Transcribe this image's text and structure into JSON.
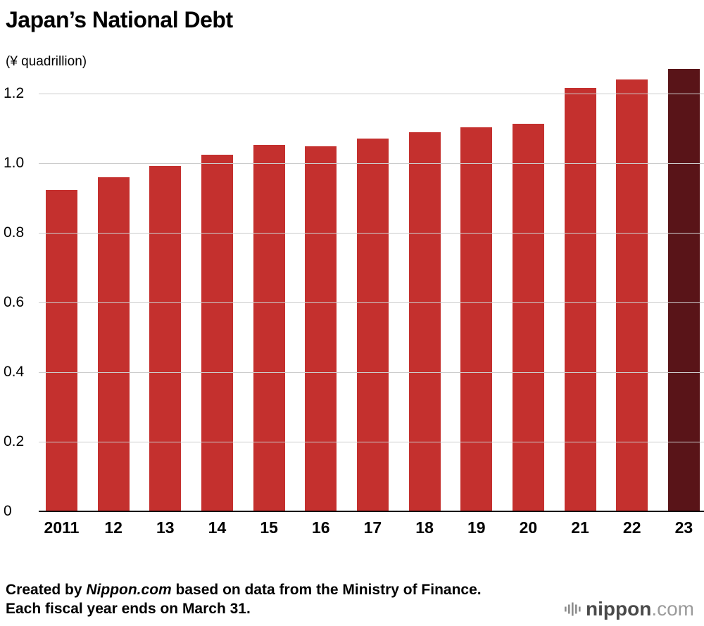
{
  "header": {
    "title": "Japan’s National Debt",
    "unit": "(¥ quadrillion)"
  },
  "chart_data": {
    "type": "bar",
    "title": "Japan’s National Debt",
    "ylabel": "(¥ quadrillion)",
    "categories": [
      "2011",
      "12",
      "13",
      "14",
      "15",
      "16",
      "17",
      "18",
      "19",
      "20",
      "21",
      "22",
      "23"
    ],
    "values": [
      0.924,
      0.96,
      0.992,
      1.025,
      1.053,
      1.049,
      1.071,
      1.088,
      1.103,
      1.114,
      1.216,
      1.241,
      1.27
    ],
    "ylim": [
      0,
      1.28
    ],
    "yticks": [
      0,
      0.2,
      0.4,
      0.6,
      0.8,
      1.0,
      1.2
    ],
    "ytick_labels": [
      "0",
      "0.2",
      "0.4",
      "0.6",
      "0.8",
      "1.0",
      "1.2"
    ],
    "grid": true,
    "legend": "none",
    "bar_color": "#c4302e",
    "highlight_color": "#591418",
    "highlight_index": 12,
    "gridline_color": "#cccccc",
    "axis_color": "#000000"
  },
  "footer": {
    "line1_prefix": "Created by ",
    "line1_brand": "Nippon.com",
    "line1_suffix": " based on data from the Ministry of Finance.",
    "line2": "Each fiscal year ends on March 31.",
    "logo_primary": "nippon",
    "logo_secondary": ".com"
  }
}
